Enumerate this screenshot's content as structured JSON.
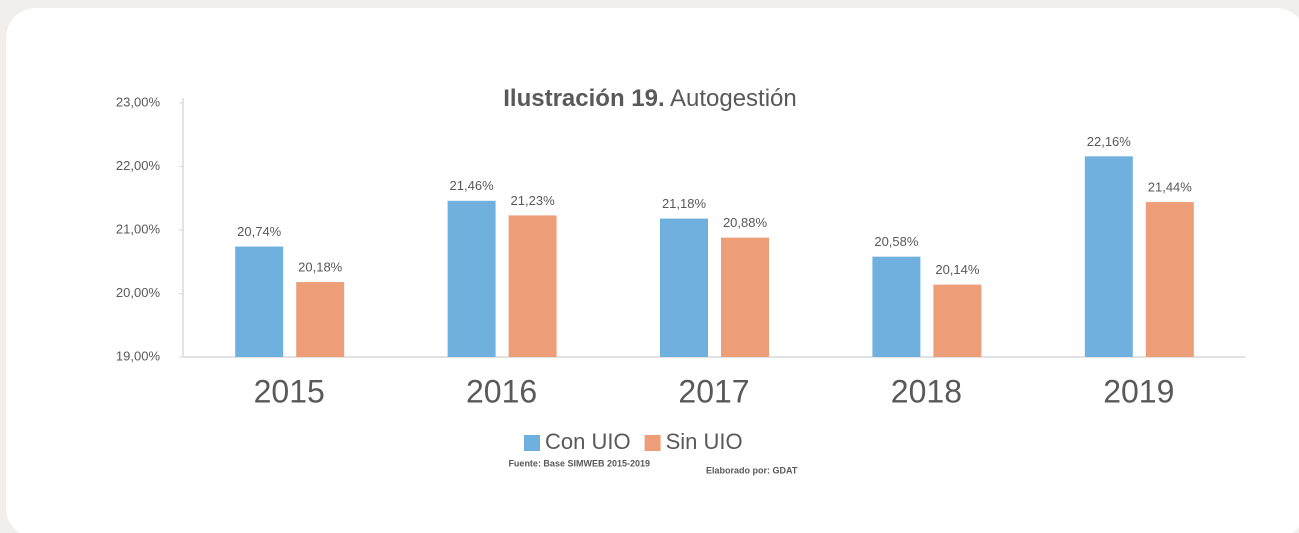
{
  "chart_data": {
    "type": "bar",
    "title": {
      "number": "Ilustración 19.",
      "text": "Autogestión"
    },
    "categories": [
      "2015",
      "2016",
      "2017",
      "2018",
      "2019"
    ],
    "series": [
      {
        "name": "Con UIO",
        "color": "#6fb0de",
        "values": [
          20.74,
          21.46,
          21.18,
          20.58,
          22.16
        ],
        "value_labels": [
          "20,74%",
          "21,46%",
          "21,18%",
          "20,58%",
          "22,16%"
        ]
      },
      {
        "name": "Sin UIO",
        "color": "#ed9d77",
        "values": [
          20.18,
          21.23,
          20.88,
          20.14,
          21.44
        ],
        "value_labels": [
          "20,18%",
          "21,23%",
          "20,88%",
          "20,14%",
          "21,44%"
        ]
      }
    ],
    "ylim": [
      19,
      23
    ],
    "yticks": [
      {
        "value": 19,
        "label": "19,00%"
      },
      {
        "value": 20,
        "label": "20,00%"
      },
      {
        "value": 21,
        "label": "21,00%"
      },
      {
        "value": 22,
        "label": "22,00%"
      },
      {
        "value": 23,
        "label": "23,00%"
      }
    ],
    "source": "Fuente: Base SIMWEB 2015-2019",
    "credit": "Elaborado por: GDAT"
  }
}
